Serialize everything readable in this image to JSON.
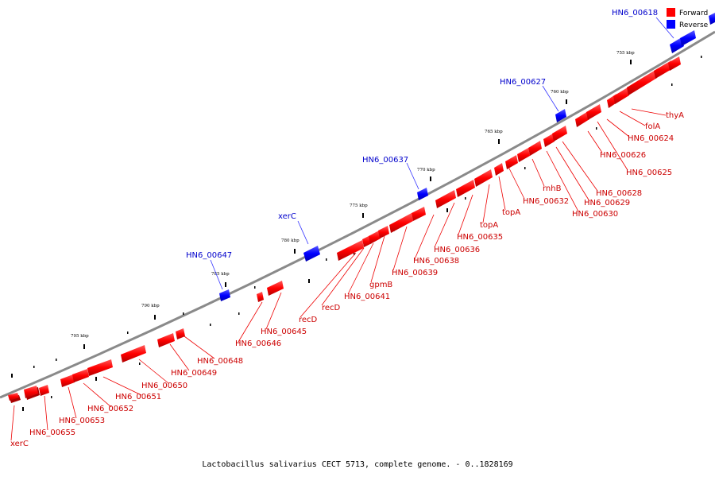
{
  "caption": "Lactobacillus salivarius CECT 5713, complete genome. - 0..1828169",
  "legend": [
    {
      "label": "Forward",
      "color": "#ff0000"
    },
    {
      "label": "Reverse",
      "color": "#0000ff"
    }
  ],
  "colors": {
    "forward": "#ff0000",
    "reverse": "#0000ff",
    "forward_label": "#cc0000",
    "reverse_label": "#0000cc",
    "backbone": "#777777"
  },
  "scale_ticks": [
    "755 kbp",
    "760 kbp",
    "765 kbp",
    "770 kbp",
    "775 kbp",
    "780 kbp",
    "785 kbp",
    "790 kbp",
    "795 kbp"
  ],
  "forward_genes": [
    "thyA",
    "folA",
    "HN6_00624",
    "HN6_00626",
    "HN6_00625",
    "HN6_00628",
    "HN6_00629",
    "HN6_00630",
    "rnhB",
    "HN6_00632",
    "topA",
    "topA",
    "HN6_00635",
    "HN6_00636",
    "HN6_00638",
    "HN6_00639",
    "gpmB",
    "HN6_00641",
    "recD",
    "recD",
    "HN6_00645",
    "HN6_00646",
    "HN6_00648",
    "HN6_00649",
    "HN6_00650",
    "HN6_00651",
    "HN6_00652",
    "HN6_00653",
    "HN6_00655",
    "xerC"
  ],
  "reverse_genes": [
    "HN6_00618",
    "HN6_00627",
    "HN6_00637",
    "xerC",
    "HN6_00647"
  ]
}
